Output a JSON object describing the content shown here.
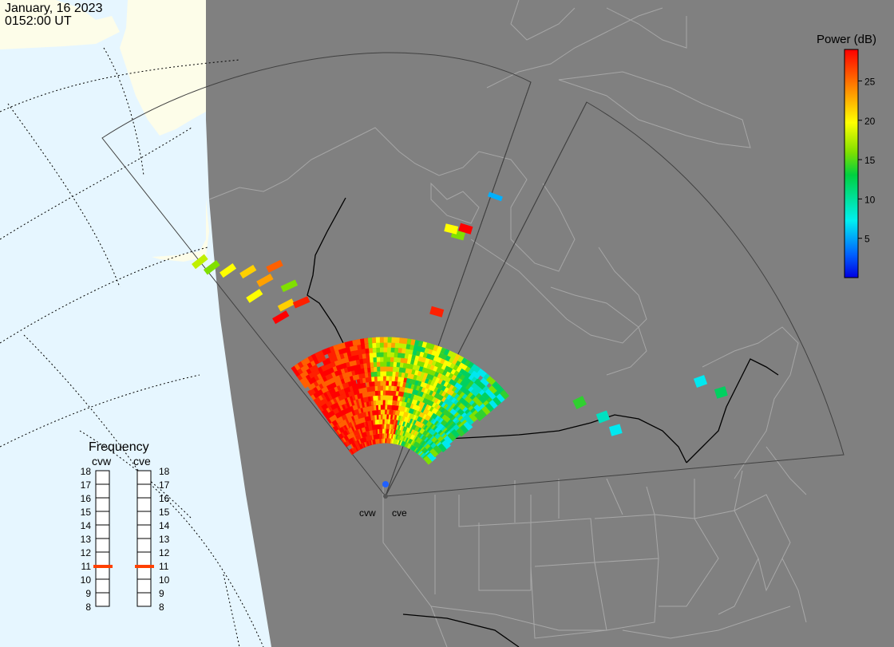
{
  "header": {
    "date": "January, 16 2023",
    "time": "0152:00 UT"
  },
  "colorbar": {
    "title": "Power (dB)",
    "ticks": [
      "25",
      "20",
      "15",
      "10",
      "5"
    ],
    "tick_values": [
      25,
      20,
      15,
      10,
      5
    ],
    "range": [
      0,
      29
    ],
    "stops": [
      "#0000e0",
      "#00a0ff",
      "#00f0f0",
      "#00d040",
      "#80e000",
      "#ffff00",
      "#ffa000",
      "#ff5000",
      "#ff0000"
    ]
  },
  "radars": {
    "cvw": {
      "label": "cvw"
    },
    "cve": {
      "label": "cve"
    }
  },
  "frequency": {
    "title": "Frequency",
    "cvw": {
      "label": "cvw",
      "value": 11
    },
    "cve": {
      "label": "cve",
      "value": 11
    },
    "scale": [
      "18",
      "17",
      "16",
      "15",
      "14",
      "13",
      "12",
      "11",
      "10",
      "9",
      "8"
    ]
  },
  "colors": {
    "ocean": "#e6f6ff",
    "night": "#808080",
    "dayland": "#fdfde9",
    "state_lines": "#a8a8a8",
    "fov_lines": "#555555",
    "freq_marker": "#ff4000"
  }
}
